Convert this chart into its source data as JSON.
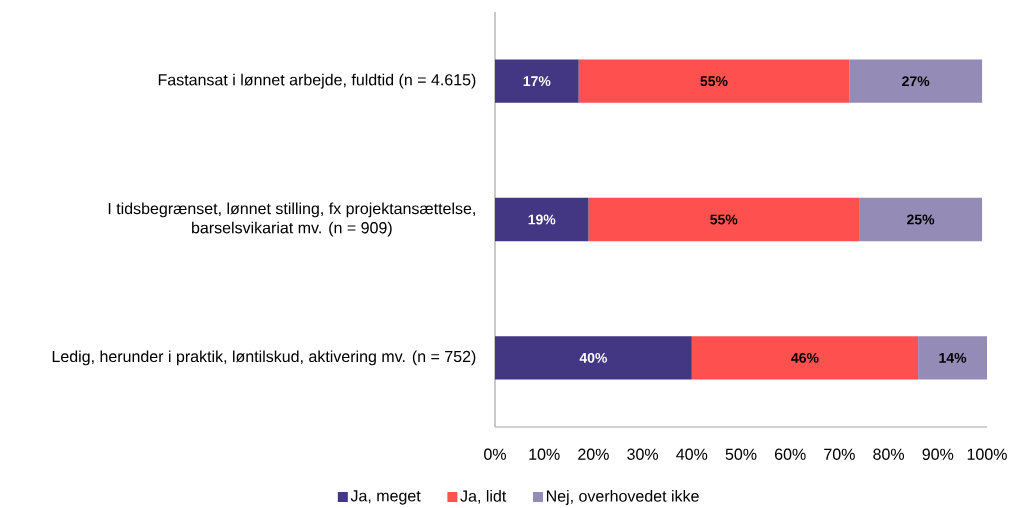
{
  "chart_data": {
    "type": "bar",
    "orientation": "horizontal",
    "stacked": true,
    "categories": [
      "Fastansat i lønnet arbejde, fuldtid (n = 4.615)",
      "I tidsbegrænset, lønnet stilling, fx projektansættelse, barselsvikariat mv. (n = 909)",
      "Ledig, herunder i praktik, løntilskud, aktivering mv. (n = 752)"
    ],
    "series": [
      {
        "name": "Ja, meget",
        "color": "#433682",
        "values": [
          17,
          19,
          40
        ],
        "value_labels": [
          "17%",
          "19%",
          "40%"
        ]
      },
      {
        "name": "Ja, lidt",
        "color": "#ff5050",
        "values": [
          55,
          55,
          46
        ],
        "value_labels": [
          "55%",
          "55%",
          "46%"
        ]
      },
      {
        "name": "Nej, overhovedet ikke",
        "color": "#948bb7",
        "values": [
          27,
          25,
          14
        ],
        "value_labels": [
          "27%",
          "25%",
          "14%"
        ]
      }
    ],
    "xlim": [
      0,
      100
    ],
    "xticks": [
      {
        "value": 0,
        "label": "0%"
      },
      {
        "value": 10,
        "label": "10%"
      },
      {
        "value": 20,
        "label": "20%"
      },
      {
        "value": 30,
        "label": "30%"
      },
      {
        "value": 40,
        "label": "40%"
      },
      {
        "value": 50,
        "label": "50%"
      },
      {
        "value": 60,
        "label": "60%"
      },
      {
        "value": 70,
        "label": "70%"
      },
      {
        "value": 80,
        "label": "80%"
      },
      {
        "value": 90,
        "label": "90%"
      },
      {
        "value": 100,
        "label": "100%"
      }
    ],
    "legend": "bottom"
  }
}
